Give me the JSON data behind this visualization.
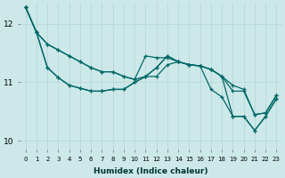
{
  "xlabel": "Humidex (Indice chaleur)",
  "ylabel": "",
  "background_color": "#cde8e8",
  "grid_color": "#b8d8d8",
  "line_color": "#006868",
  "xlim": [
    -0.5,
    23.5
  ],
  "ylim": [
    9.85,
    12.35
  ],
  "yticks": [
    10,
    11,
    12
  ],
  "xticks": [
    0,
    1,
    2,
    3,
    4,
    5,
    6,
    7,
    8,
    9,
    10,
    11,
    12,
    13,
    14,
    15,
    16,
    17,
    18,
    19,
    20,
    21,
    22,
    23
  ],
  "series": [
    [
      12.28,
      11.85,
      11.65,
      11.55,
      11.45,
      11.35,
      11.25,
      11.18,
      11.18,
      11.1,
      11.05,
      11.1,
      11.1,
      11.3,
      11.35,
      11.3,
      11.28,
      11.22,
      11.1,
      10.95,
      10.88,
      10.45,
      10.48,
      10.78
    ],
    [
      12.28,
      11.85,
      11.65,
      11.55,
      11.45,
      11.35,
      11.25,
      11.18,
      11.18,
      11.1,
      11.05,
      11.45,
      11.42,
      11.42,
      11.35,
      11.3,
      11.28,
      11.22,
      11.1,
      10.85,
      10.85,
      10.45,
      10.48,
      10.78
    ],
    [
      12.28,
      11.85,
      11.25,
      11.08,
      10.95,
      10.9,
      10.85,
      10.85,
      10.88,
      10.88,
      11.0,
      11.1,
      11.25,
      11.45,
      11.35,
      11.3,
      11.28,
      10.88,
      10.75,
      10.42,
      10.42,
      10.18,
      10.42,
      10.72
    ],
    [
      12.28,
      11.85,
      11.25,
      11.08,
      10.95,
      10.9,
      10.85,
      10.85,
      10.88,
      10.88,
      11.0,
      11.1,
      11.25,
      11.45,
      11.35,
      11.3,
      11.28,
      11.22,
      11.1,
      10.42,
      10.42,
      10.18,
      10.42,
      10.72
    ]
  ]
}
